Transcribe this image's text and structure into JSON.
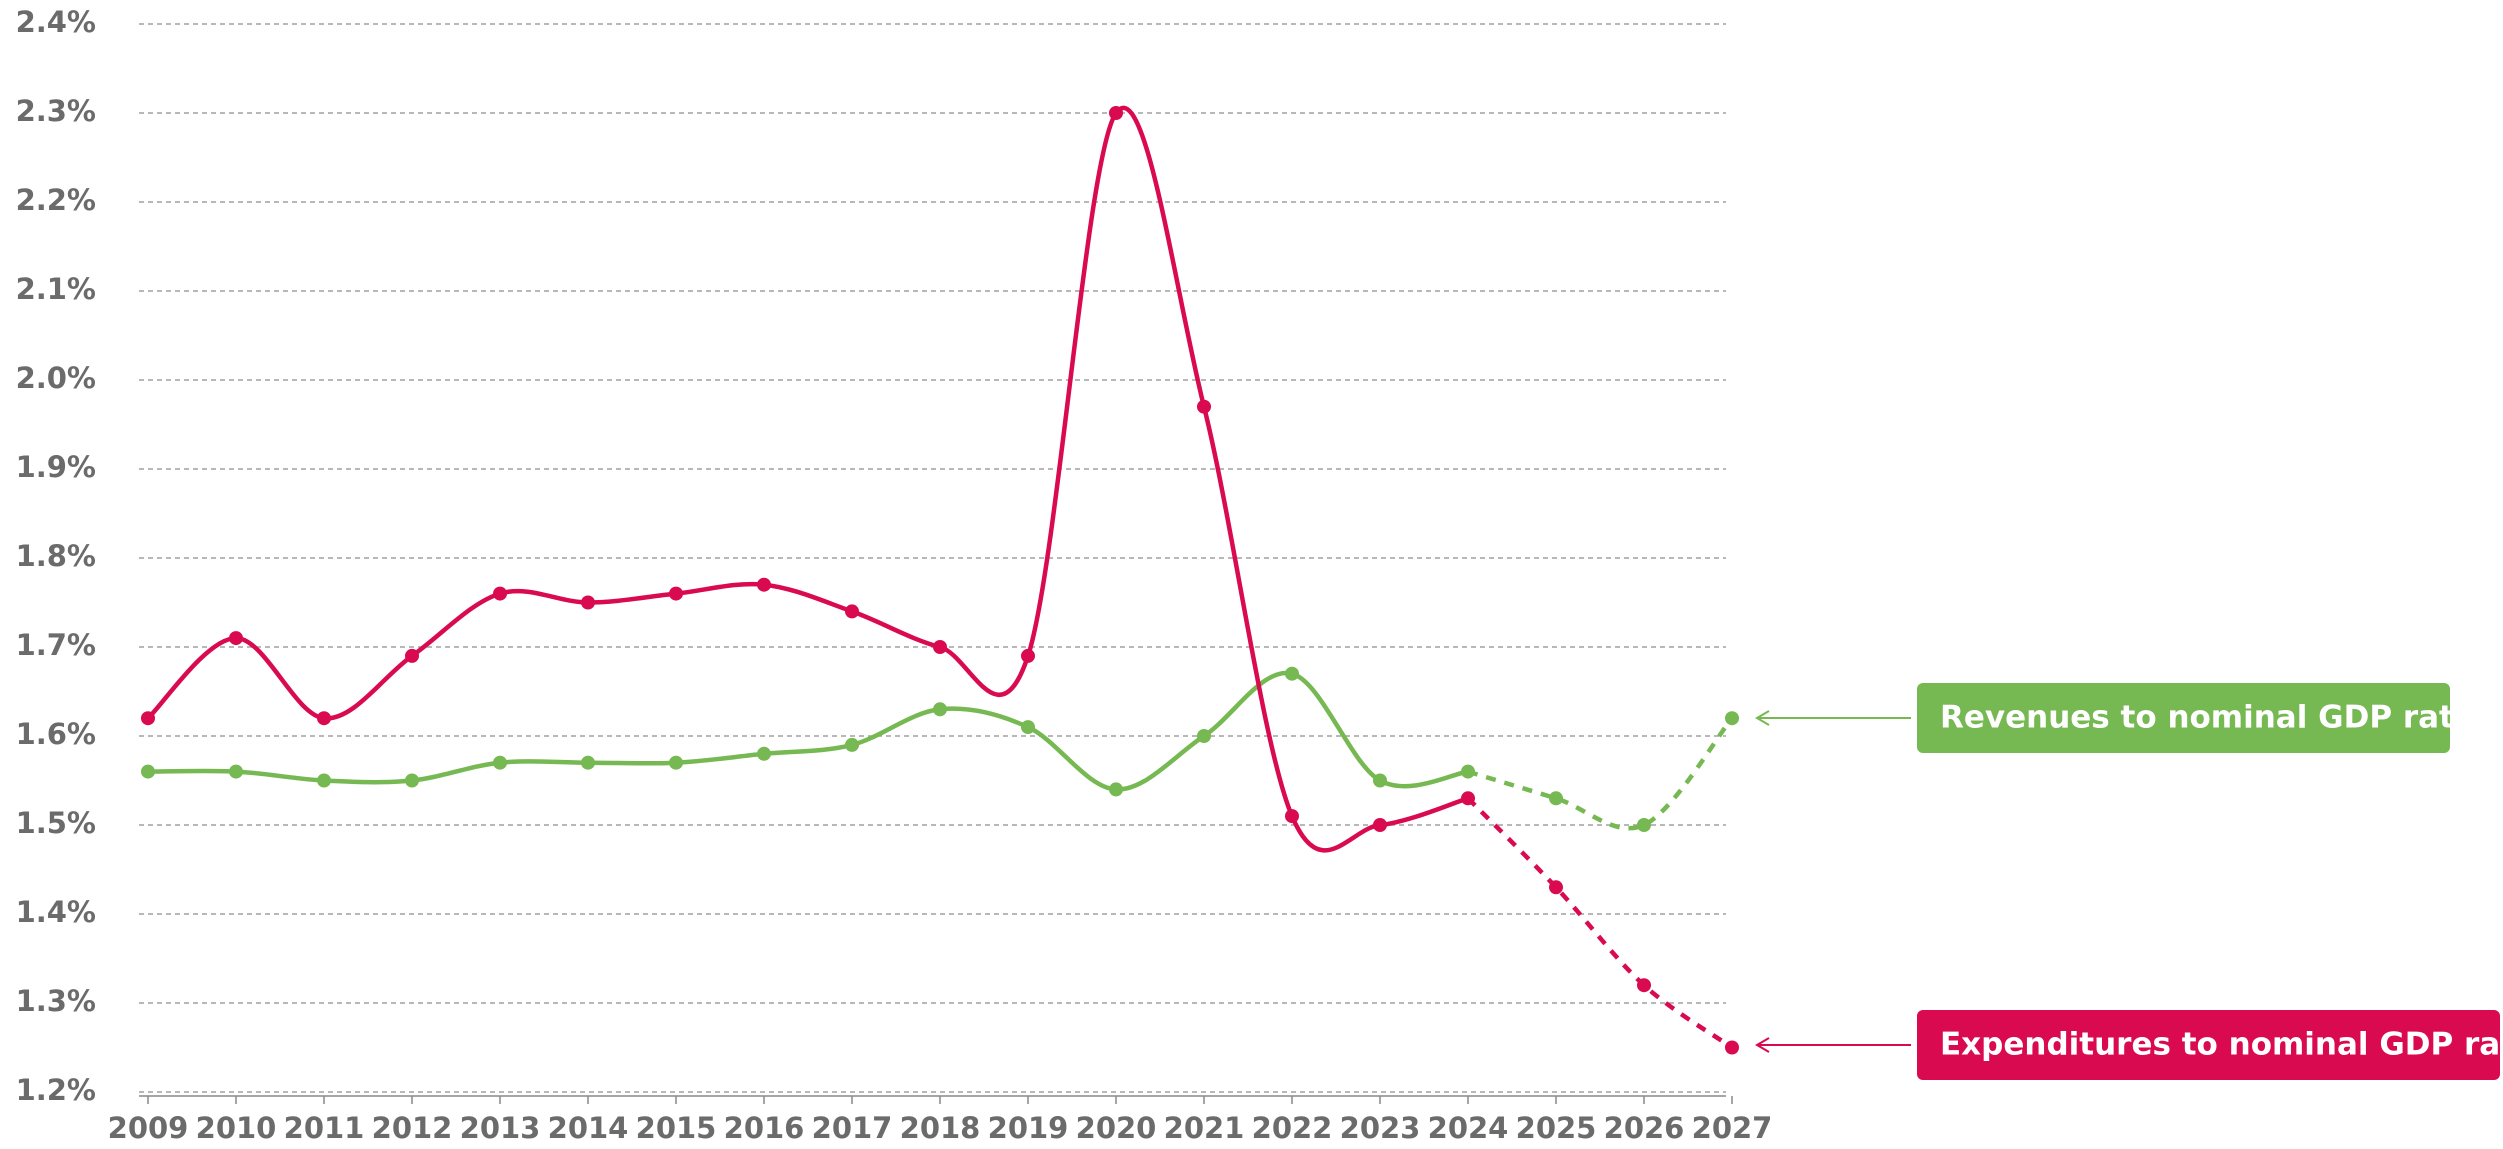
{
  "chart_data": {
    "type": "line",
    "categories": [
      "2009",
      "2010",
      "2011",
      "2012",
      "2013",
      "2014",
      "2015",
      "2016",
      "2017",
      "2018",
      "2019",
      "2020",
      "2021",
      "2022",
      "2023",
      "2024",
      "2025",
      "2026",
      "2027"
    ],
    "dashed_from": "2024",
    "series": [
      {
        "name": "Revenues to nominal GDP ratio",
        "color": "#76b852",
        "values": [
          1.56,
          1.56,
          1.55,
          1.55,
          1.57,
          1.57,
          1.57,
          1.58,
          1.59,
          1.63,
          1.61,
          1.54,
          1.6,
          1.67,
          1.55,
          1.56,
          1.53,
          1.5,
          1.62
        ]
      },
      {
        "name": "Expenditures to nominal GDP ratio",
        "color": "#d90a4f",
        "values": [
          1.62,
          1.71,
          1.62,
          1.69,
          1.76,
          1.75,
          1.76,
          1.77,
          1.74,
          1.7,
          1.69,
          2.3,
          1.97,
          1.51,
          1.5,
          1.53,
          1.43,
          1.32,
          1.25
        ]
      }
    ],
    "ylim": [
      1.2,
      2.4
    ],
    "yticks": [
      {
        "value": 1.2,
        "label": "1.2%"
      },
      {
        "value": 1.3,
        "label": "1.3%"
      },
      {
        "value": 1.4,
        "label": "1.4%"
      },
      {
        "value": 1.5,
        "label": "1.5%"
      },
      {
        "value": 1.6,
        "label": "1.6%"
      },
      {
        "value": 1.7,
        "label": "1.7%"
      },
      {
        "value": 1.8,
        "label": "1.8%"
      },
      {
        "value": 1.9,
        "label": "1.9%"
      },
      {
        "value": 2.0,
        "label": "2.0%"
      },
      {
        "value": 2.1,
        "label": "2.1%"
      },
      {
        "value": 2.2,
        "label": "2.2%"
      },
      {
        "value": 2.3,
        "label": "2.3%"
      },
      {
        "value": 2.4,
        "label": "2.4%"
      }
    ],
    "grid": true
  }
}
